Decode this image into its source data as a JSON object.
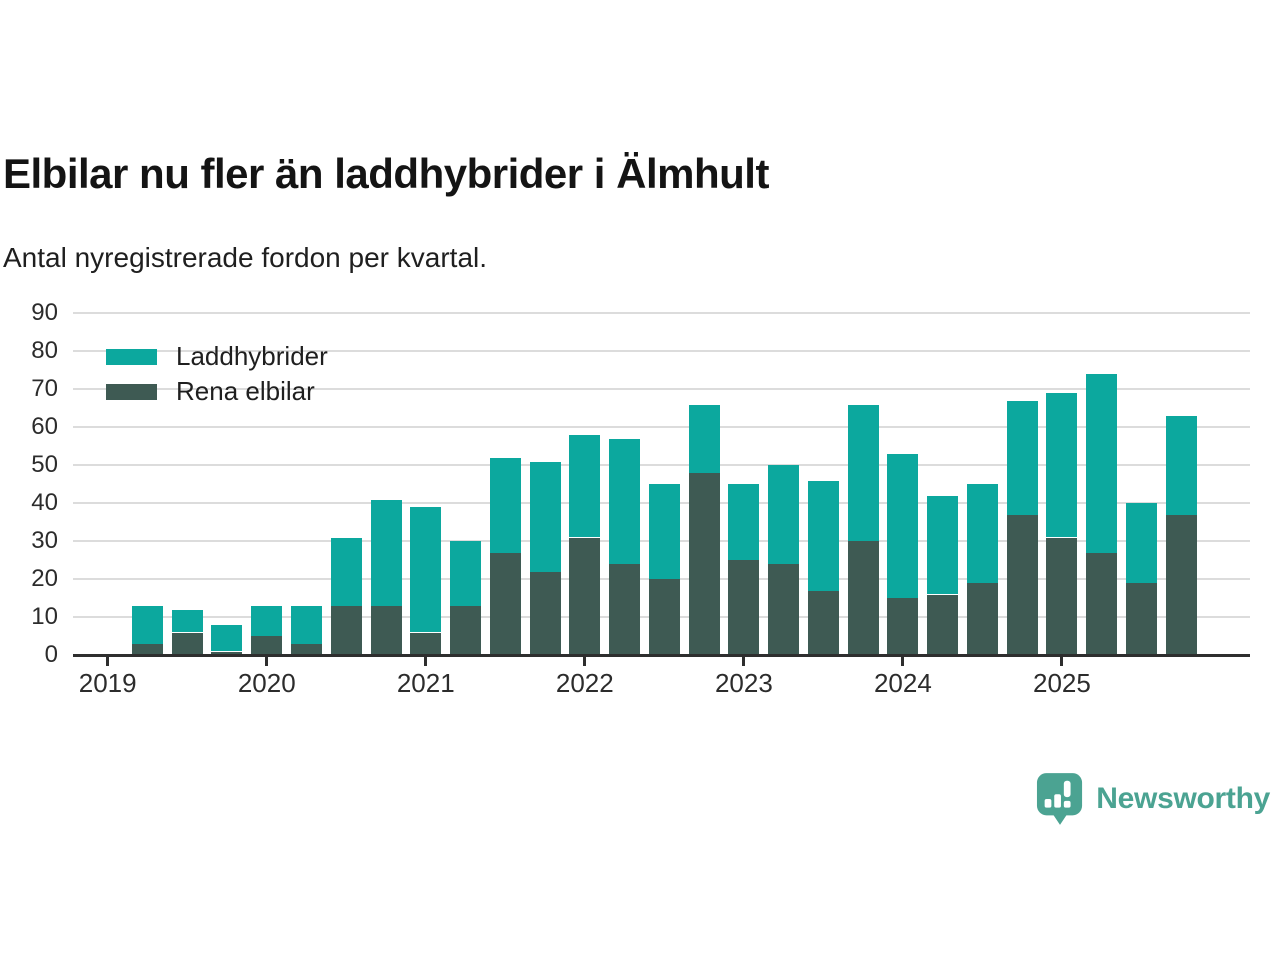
{
  "header": {
    "title": "Elbilar nu fler än laddhybrider i Älmhult",
    "subtitle": "Antal nyregistrerade fordon per kvartal."
  },
  "legend": {
    "items": [
      {
        "label": "Laddhybrider",
        "color": "#0CA89E"
      },
      {
        "label": "Rena elbilar",
        "color": "#3E5A53"
      }
    ]
  },
  "branding": {
    "name": "Newsworthy",
    "color": "#4BA392"
  },
  "chart_data": {
    "type": "bar",
    "stacked": true,
    "title": "Elbilar nu fler än laddhybrider i Älmhult",
    "subtitle": "Antal nyregistrerade fordon per kvartal.",
    "x": [
      "2019 Q2",
      "2019 Q3",
      "2019 Q4",
      "2020 Q1",
      "2020 Q2",
      "2020 Q3",
      "2020 Q4",
      "2021 Q1",
      "2021 Q2",
      "2021 Q3",
      "2021 Q4",
      "2022 Q1",
      "2022 Q2",
      "2022 Q3",
      "2022 Q4",
      "2023 Q1",
      "2023 Q2",
      "2023 Q3",
      "2023 Q4",
      "2024 Q1",
      "2024 Q2",
      "2024 Q3",
      "2024 Q4",
      "2025 Q1",
      "2025 Q2",
      "2025 Q3",
      "2025 Q4"
    ],
    "series": [
      {
        "name": "Rena elbilar",
        "color": "#3E5A53",
        "values": [
          3,
          6,
          1,
          5,
          3,
          13,
          13,
          6,
          13,
          27,
          22,
          31,
          24,
          20,
          48,
          25,
          24,
          17,
          30,
          15,
          16,
          19,
          37,
          31,
          27,
          19,
          37
        ]
      },
      {
        "name": "Laddhybrider",
        "color": "#0CA89E",
        "values": [
          10,
          6,
          7,
          8,
          10,
          18,
          28,
          33,
          17,
          25,
          29,
          27,
          33,
          25,
          18,
          20,
          26,
          29,
          36,
          38,
          26,
          26,
          30,
          38,
          47,
          21,
          26
        ]
      }
    ],
    "totals": [
      13,
      12,
      8,
      13,
      13,
      31,
      41,
      39,
      30,
      52,
      51,
      58,
      57,
      45,
      66,
      45,
      50,
      46,
      66,
      53,
      42,
      45,
      67,
      69,
      74,
      40,
      63
    ],
    "ylim": [
      0,
      90
    ],
    "yticks": [
      0,
      10,
      20,
      30,
      40,
      50,
      60,
      70,
      80,
      90
    ],
    "xticks": [
      {
        "label": "2019",
        "quarter_index": 0
      },
      {
        "label": "2020",
        "quarter_index": 4
      },
      {
        "label": "2021",
        "quarter_index": 8
      },
      {
        "label": "2022",
        "quarter_index": 12
      },
      {
        "label": "2023",
        "quarter_index": 16
      },
      {
        "label": "2024",
        "quarter_index": 20
      },
      {
        "label": "2025",
        "quarter_index": 24
      }
    ],
    "grid": true,
    "legend_position": "top-left"
  }
}
